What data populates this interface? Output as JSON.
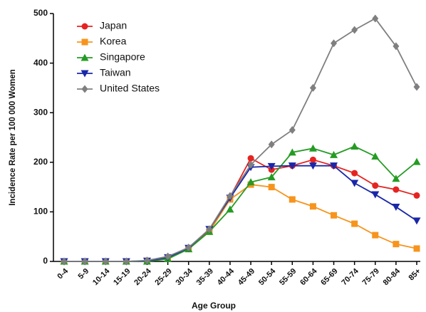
{
  "chart_data": {
    "type": "line",
    "x_label": "Age Group",
    "y_label": "Incidence Rate per 100 000 Women",
    "categories": [
      "0-4",
      "5-9",
      "10-14",
      "15-19",
      "20-24",
      "25-29",
      "30-34",
      "35-39",
      "40-44",
      "45-49",
      "50-54",
      "55-59",
      "60-64",
      "65-69",
      "70-74",
      "75-79",
      "80-84",
      "85+"
    ],
    "series": [
      {
        "name": "Japan",
        "color": "#e52421",
        "marker": "circle",
        "values": [
          0,
          0,
          0,
          0,
          1,
          8,
          27,
          63,
          130,
          208,
          185,
          193,
          205,
          193,
          178,
          153,
          145,
          133
        ]
      },
      {
        "name": "Korea",
        "color": "#f7941d",
        "marker": "square",
        "values": [
          0,
          0,
          0,
          0,
          1,
          8,
          25,
          60,
          125,
          155,
          150,
          125,
          111,
          93,
          76,
          53,
          35,
          26
        ]
      },
      {
        "name": "Singapore",
        "color": "#259b24",
        "marker": "triangle-up",
        "values": [
          0,
          0,
          0,
          0,
          0,
          5,
          25,
          60,
          105,
          160,
          170,
          220,
          228,
          215,
          232,
          212,
          167,
          201
        ]
      },
      {
        "name": "Taiwan",
        "color": "#1a27a8",
        "marker": "triangle-down",
        "values": [
          0,
          0,
          0,
          0,
          1,
          8,
          27,
          65,
          128,
          190,
          192,
          193,
          193,
          193,
          158,
          135,
          110,
          82
        ]
      },
      {
        "name": "United States",
        "color": "#7f7f7f",
        "marker": "diamond",
        "values": [
          0,
          0,
          0,
          0,
          2,
          10,
          28,
          65,
          132,
          195,
          236,
          265,
          350,
          440,
          467,
          490,
          434,
          352
        ]
      }
    ],
    "ylim": [
      0,
      500
    ],
    "yticks": [
      0,
      100,
      200,
      300,
      400,
      500
    ],
    "grid": false,
    "legend": "top-left"
  }
}
